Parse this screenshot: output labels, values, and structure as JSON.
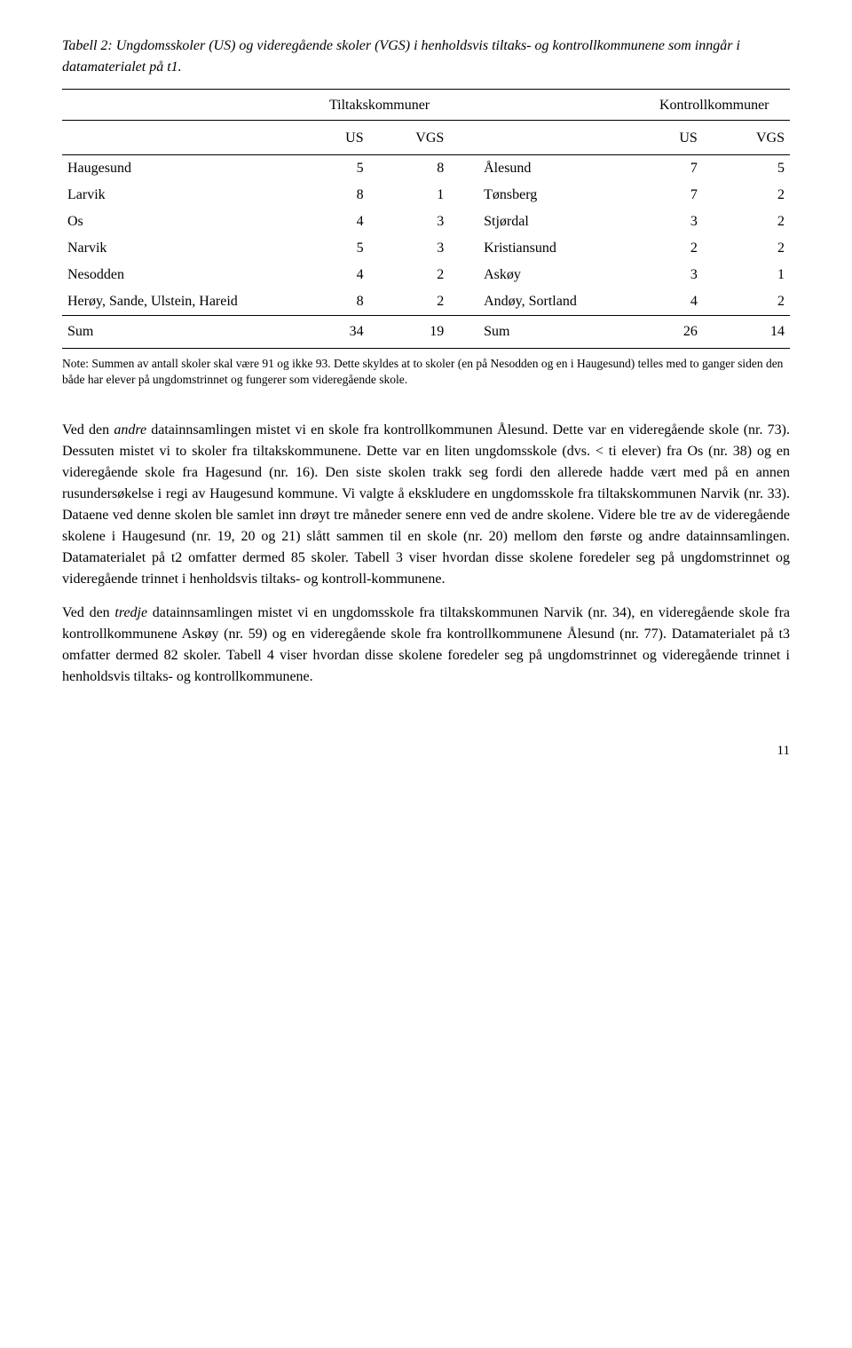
{
  "table": {
    "caption": "Tabell 2: Ungdomsskoler (US) og videregående skoler (VGS) i henholdsvis tiltaks- og kontrollkommunene som inngår i datamaterialet på t1.",
    "group_left": "Tiltakskommuner",
    "group_right": "Kontrollkommuner",
    "col_us": "US",
    "col_vgs": "VGS",
    "rows": [
      {
        "l_name": "Haugesund",
        "l_us": "5",
        "l_vgs": "8",
        "r_name": "Ålesund",
        "r_us": "7",
        "r_vgs": "5"
      },
      {
        "l_name": "Larvik",
        "l_us": "8",
        "l_vgs": "1",
        "r_name": "Tønsberg",
        "r_us": "7",
        "r_vgs": "2"
      },
      {
        "l_name": "Os",
        "l_us": "4",
        "l_vgs": "3",
        "r_name": "Stjørdal",
        "r_us": "3",
        "r_vgs": "2"
      },
      {
        "l_name": "Narvik",
        "l_us": "5",
        "l_vgs": "3",
        "r_name": "Kristiansund",
        "r_us": "2",
        "r_vgs": "2"
      },
      {
        "l_name": "Nesodden",
        "l_us": "4",
        "l_vgs": "2",
        "r_name": "Askøy",
        "r_us": "3",
        "r_vgs": "1"
      },
      {
        "l_name": "Herøy, Sande, Ulstein, Hareid",
        "l_us": "8",
        "l_vgs": "2",
        "r_name": "Andøy, Sortland",
        "r_us": "4",
        "r_vgs": "2"
      }
    ],
    "sum_label": "Sum",
    "sum_l_us": "34",
    "sum_l_vgs": "19",
    "sum_r_us": "26",
    "sum_r_vgs": "14",
    "note": "Note: Summen av antall skoler skal være 91 og ikke 93. Dette skyldes at to skoler (en på Nesodden og en i Haugesund) telles med to ganger siden den både har elever på ungdomstrinnet og fungerer som videregående skole."
  },
  "para1": {
    "a": "Ved den ",
    "b": "andre",
    "c": " datainnsamlingen mistet vi en skole fra kontrollkommunen Ålesund. Dette var en videregående skole (nr. 73). Dessuten mistet vi to skoler fra tiltakskommunene. Dette var en liten ungdomsskole (dvs. < ti elever) fra Os (nr. 38) og en videregående skole fra Hagesund (nr. 16). Den siste skolen trakk seg fordi den allerede hadde vært med på en annen rusundersøkelse i regi av Haugesund kommune. Vi valgte å ekskludere en ungdomsskole fra tiltakskommunen Narvik (nr. 33). Dataene ved denne skolen ble samlet inn drøyt tre måneder senere enn ved de andre skolene. Videre ble tre av de videregående skolene i Haugesund (nr. 19, 20 og 21) slått sammen til en skole (nr. 20) mellom den første og andre datainnsamlingen. Datamaterialet på t2 omfatter dermed 85 skoler. Tabell 3 viser hvordan disse skolene foredeler seg på ungdomstrinnet og videregående trinnet i henholdsvis tiltaks- og kontroll-kommunene."
  },
  "para2": {
    "a": "Ved den ",
    "b": "tredje",
    "c": " datainnsamlingen mistet vi en ungdomsskole fra tiltakskommunen Narvik (nr. 34), en videregående skole fra kontrollkommunene Askøy (nr. 59) og en videregående skole fra kontrollkommunene Ålesund (nr. 77). Datamaterialet på t3 omfatter dermed 82 skoler. Tabell 4 viser hvordan disse skolene foredeler seg på ungdomstrinnet og videregående trinnet i henholdsvis tiltaks- og kontrollkommunene."
  },
  "pagenum": "11"
}
